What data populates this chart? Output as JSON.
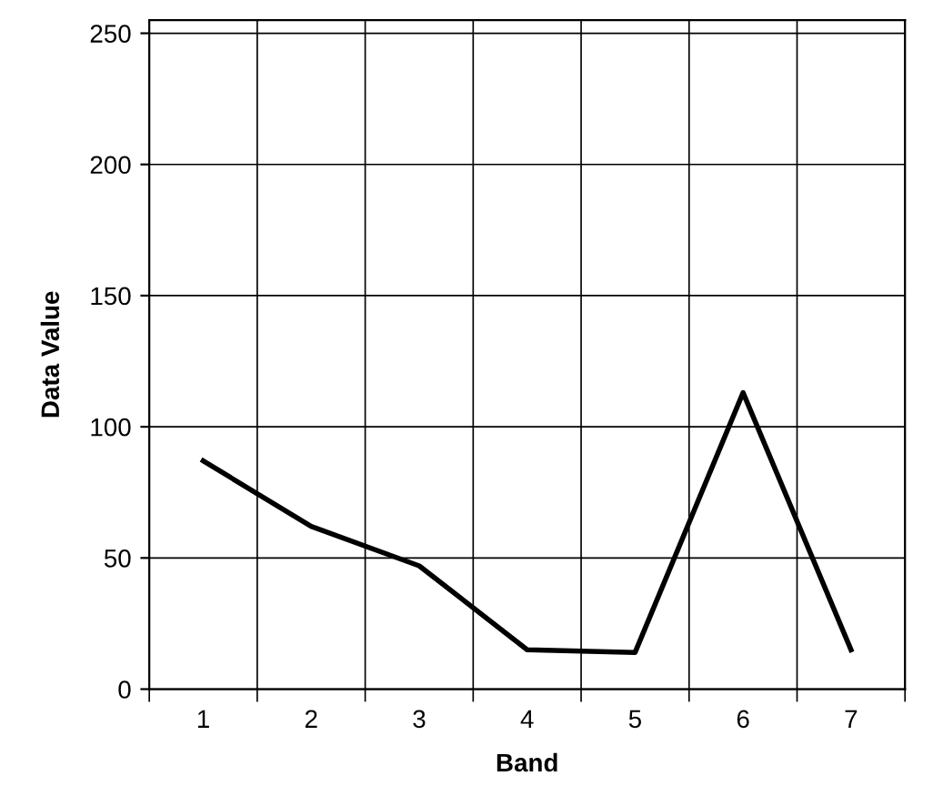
{
  "chart_data": {
    "type": "line",
    "xlabel": "Band",
    "ylabel": "Data Value",
    "categories": [
      "1",
      "2",
      "3",
      "4",
      "5",
      "6",
      "7"
    ],
    "series": [
      {
        "color": "#000000",
        "values": [
          87,
          62,
          47,
          15,
          14,
          113,
          15
        ]
      }
    ],
    "ylim": [
      0,
      255
    ],
    "yticks": [
      0,
      50,
      100,
      150,
      200,
      250
    ],
    "grid": true,
    "marker": "none",
    "line_style": "solid"
  }
}
